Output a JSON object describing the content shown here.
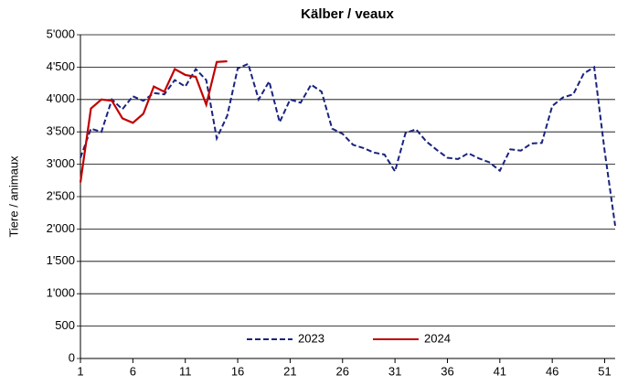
{
  "chart_data": {
    "type": "line",
    "title": "Kälber / veaux",
    "ylabel": "Tiere / animaux",
    "x": [
      1,
      2,
      3,
      4,
      5,
      6,
      7,
      8,
      9,
      10,
      11,
      12,
      13,
      14,
      15,
      16,
      17,
      18,
      19,
      20,
      21,
      22,
      23,
      24,
      25,
      26,
      27,
      28,
      29,
      30,
      31,
      32,
      33,
      34,
      35,
      36,
      37,
      38,
      39,
      40,
      41,
      42,
      43,
      44,
      45,
      46,
      47,
      48,
      49,
      50,
      51,
      52
    ],
    "xlim": [
      1,
      52
    ],
    "xticks": [
      1,
      6,
      11,
      16,
      21,
      26,
      31,
      36,
      41,
      46,
      51
    ],
    "ylim": [
      0,
      5000
    ],
    "yticks": [
      0,
      500,
      {
        "value": 1000,
        "label": "1'000"
      },
      {
        "value": 1500,
        "label": "1'500"
      },
      {
        "value": 2000,
        "label": "2'000"
      },
      {
        "value": 2500,
        "label": "2'500"
      },
      {
        "value": 3000,
        "label": "3'000"
      },
      {
        "value": 3500,
        "label": "3'500"
      },
      {
        "value": 4000,
        "label": "4'000"
      },
      {
        "value": 4500,
        "label": "4'500"
      },
      {
        "value": 5000,
        "label": "5'000"
      }
    ],
    "grid": true,
    "legend": "bottom",
    "series": [
      {
        "name": "2023",
        "color": "#1a237e",
        "dash": true,
        "values": [
          3100,
          3550,
          3500,
          4000,
          3850,
          4050,
          3980,
          4100,
          4080,
          4300,
          4200,
          4470,
          4300,
          3400,
          3750,
          4480,
          4550,
          4000,
          4280,
          3650,
          4000,
          3950,
          4230,
          4120,
          3550,
          3470,
          3300,
          3250,
          3180,
          3150,
          2890,
          3480,
          3540,
          3350,
          3220,
          3100,
          3080,
          3170,
          3090,
          3030,
          2900,
          3230,
          3210,
          3320,
          3330,
          3900,
          4030,
          4080,
          4400,
          4500,
          3200,
          2050
        ]
      },
      {
        "name": "2024",
        "color": "#c00000",
        "dash": false,
        "values": [
          2720,
          3860,
          4000,
          3980,
          3710,
          3640,
          3780,
          4200,
          4120,
          4470,
          4380,
          4350,
          3920,
          4580,
          4590,
          null,
          null,
          null,
          null,
          null,
          null,
          null,
          null,
          null,
          null,
          null,
          null,
          null,
          null,
          null,
          null,
          null,
          null,
          null,
          null,
          null,
          null,
          null,
          null,
          null,
          null,
          null,
          null,
          null,
          null,
          null,
          null,
          null,
          null,
          null,
          null,
          null
        ]
      }
    ]
  }
}
